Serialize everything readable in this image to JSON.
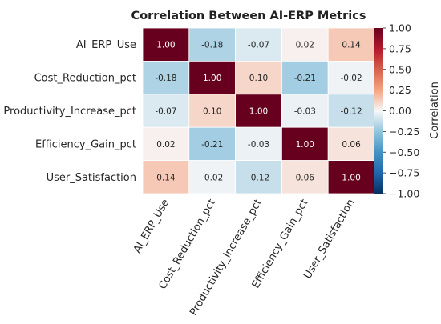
{
  "chart_data": {
    "type": "heatmap",
    "title": "Correlation Between AI-ERP Metrics",
    "rows": [
      "AI_ERP_Use",
      "Cost_Reduction_pct",
      "Productivity_Increase_pct",
      "Efficiency_Gain_pct",
      "User_Satisfaction"
    ],
    "columns": [
      "AI_ERP_Use",
      "Cost_Reduction_pct",
      "Productivity_Increase_pct",
      "Efficiency_Gain_pct",
      "User_Satisfaction"
    ],
    "values": [
      [
        1.0,
        -0.18,
        -0.07,
        0.02,
        0.14
      ],
      [
        -0.18,
        1.0,
        0.1,
        -0.21,
        -0.02
      ],
      [
        -0.07,
        0.1,
        1.0,
        -0.03,
        -0.12
      ],
      [
        0.02,
        -0.21,
        -0.03,
        1.0,
        0.06
      ],
      [
        0.14,
        -0.02,
        -0.12,
        0.06,
        1.0
      ]
    ],
    "value_format": "0.00",
    "colorbar": {
      "label": "Correlation",
      "range": [
        -1.0,
        1.0
      ],
      "ticks": [
        1.0,
        0.75,
        0.5,
        0.25,
        0.0,
        -0.25,
        -0.5,
        -0.75,
        -1.0
      ],
      "tick_labels": [
        "1.00",
        "0.75",
        "0.50",
        "0.25",
        "0.00",
        "−0.25",
        "−0.50",
        "−0.75",
        "−1.00"
      ],
      "colormap": "coolwarm-diverging"
    }
  }
}
